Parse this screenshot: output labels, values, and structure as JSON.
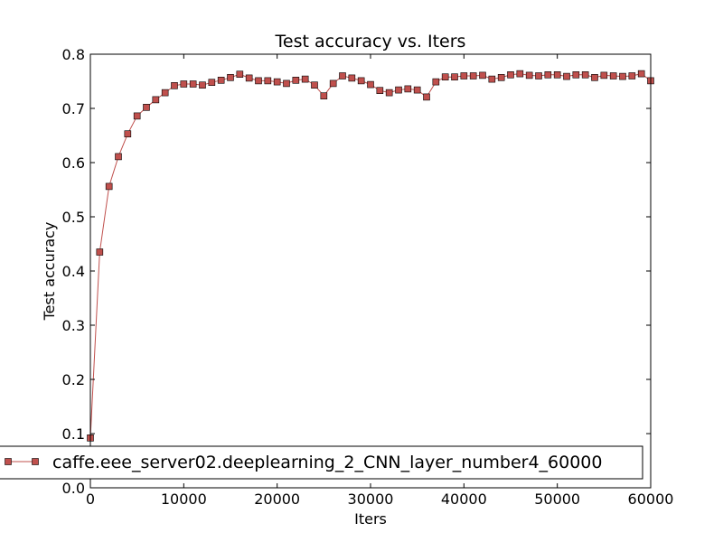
{
  "chart_data": {
    "type": "line",
    "title": "Test accuracy  vs. Iters",
    "xlabel": "Iters",
    "ylabel": "Test accuracy",
    "xlim": [
      0,
      60000
    ],
    "ylim": [
      0.0,
      0.8
    ],
    "x_ticks": [
      "0",
      "10000",
      "20000",
      "30000",
      "40000",
      "50000",
      "60000"
    ],
    "y_ticks": [
      "0.0",
      "0.1",
      "0.2",
      "0.3",
      "0.4",
      "0.5",
      "0.6",
      "0.7",
      "0.8"
    ],
    "grid": false,
    "legend_position": "lower-left",
    "colors": {
      "series": "#c0504d",
      "marker_edge": "#000000"
    },
    "series": [
      {
        "name": "caffe.eee_server02.deeplearning_2_CNN_layer_number4_60000",
        "marker": "square",
        "x": [
          0,
          1000,
          2000,
          3000,
          4000,
          5000,
          6000,
          7000,
          8000,
          9000,
          10000,
          11000,
          12000,
          13000,
          14000,
          15000,
          16000,
          17000,
          18000,
          19000,
          20000,
          21000,
          22000,
          23000,
          24000,
          25000,
          26000,
          27000,
          28000,
          29000,
          30000,
          31000,
          32000,
          33000,
          34000,
          35000,
          36000,
          37000,
          38000,
          39000,
          40000,
          41000,
          42000,
          43000,
          44000,
          45000,
          46000,
          47000,
          48000,
          49000,
          50000,
          51000,
          52000,
          53000,
          54000,
          55000,
          56000,
          57000,
          58000,
          59000,
          60000
        ],
        "y": [
          0.092,
          0.435,
          0.556,
          0.611,
          0.653,
          0.686,
          0.702,
          0.716,
          0.729,
          0.742,
          0.745,
          0.745,
          0.743,
          0.748,
          0.752,
          0.757,
          0.763,
          0.756,
          0.751,
          0.751,
          0.749,
          0.746,
          0.752,
          0.754,
          0.743,
          0.723,
          0.746,
          0.76,
          0.756,
          0.751,
          0.744,
          0.733,
          0.729,
          0.734,
          0.736,
          0.734,
          0.721,
          0.749,
          0.758,
          0.758,
          0.76,
          0.76,
          0.761,
          0.754,
          0.757,
          0.762,
          0.764,
          0.761,
          0.76,
          0.762,
          0.762,
          0.759,
          0.762,
          0.762,
          0.757,
          0.761,
          0.76,
          0.759,
          0.76,
          0.764,
          0.751
        ]
      }
    ]
  }
}
